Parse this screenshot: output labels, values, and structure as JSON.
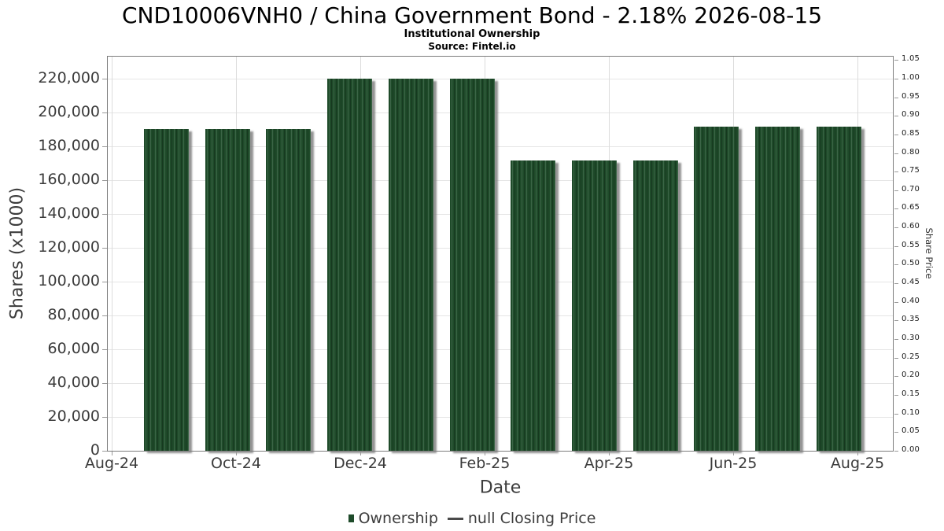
{
  "header": {
    "title": "CND10006VNH0 / China Government Bond - 2.18% 2026-08-15",
    "subtitle": "Institutional Ownership",
    "source": "Source: Fintel.io"
  },
  "chart_data": {
    "type": "bar",
    "title": "CND10006VNH0 / China Government Bond - 2.18% 2026-08-15",
    "subtitle": "Institutional Ownership",
    "source": "Source: Fintel.io",
    "xlabel": "Date",
    "ylabel_left": "Shares (x1000)",
    "ylabel_right": "Share Price",
    "categories": [
      "Sep-24",
      "Oct-24",
      "Nov-24",
      "Dec-24",
      "Jan-25",
      "Feb-25",
      "Mar-25",
      "Apr-25",
      "May-25",
      "Jun-25",
      "Jul-25",
      "Aug-25"
    ],
    "series": [
      {
        "name": "Ownership",
        "values": [
          190000,
          190000,
          190000,
          220000,
          220000,
          220000,
          171500,
          171500,
          171500,
          191400,
          191400,
          191400
        ]
      },
      {
        "name": "null Closing Price",
        "values": []
      }
    ],
    "x_tick_labels": [
      "Aug-24",
      "Oct-24",
      "Dec-24",
      "Feb-25",
      "Apr-25",
      "Jun-25",
      "Aug-25"
    ],
    "left_axis": {
      "ticks": [
        0,
        20000,
        40000,
        60000,
        80000,
        100000,
        120000,
        140000,
        160000,
        180000,
        200000,
        220000
      ],
      "lim": [
        0,
        233000
      ]
    },
    "right_axis": {
      "ticks": [
        0.0,
        0.05,
        0.1,
        0.15,
        0.2,
        0.25,
        0.3,
        0.35,
        0.4,
        0.45,
        0.5,
        0.55,
        0.6,
        0.65,
        0.7,
        0.75,
        0.8,
        0.85,
        0.9,
        0.95,
        1.0,
        1.05
      ],
      "lim": [
        0,
        1.059
      ]
    },
    "grid": true,
    "legend_position": "bottom",
    "legend": [
      {
        "label": "Ownership",
        "marker": "square",
        "color": "#1e4b2a"
      },
      {
        "label": "null Closing Price",
        "marker": "line",
        "color": "#4a4a4a"
      }
    ]
  },
  "colors": {
    "bar": "#1f4b2a",
    "bar_stripe_light": "#3c6547",
    "bar_stripe_dark": "#16381f",
    "bar_shadow": "#808080",
    "grid": "#e5e5e5",
    "axis_border": "#7d7d7d",
    "tick": "#999999",
    "text": "#3b3b3b",
    "title_text": "#000000"
  }
}
